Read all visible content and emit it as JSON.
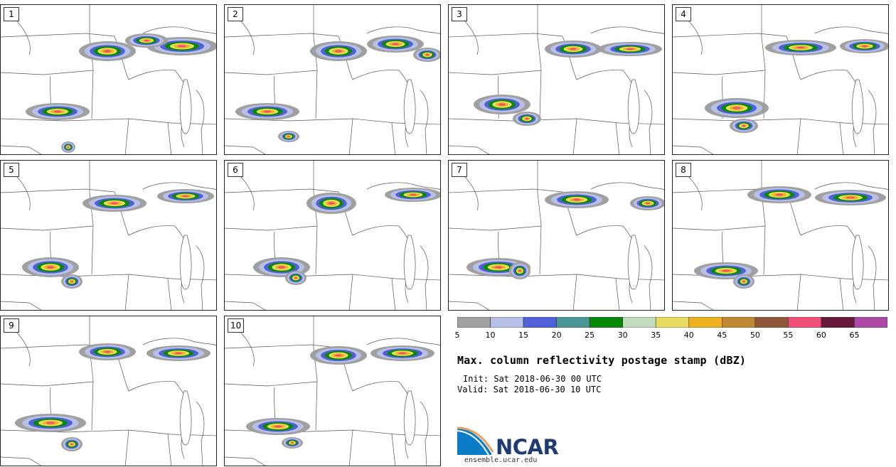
{
  "panels": [
    {
      "label": "1"
    },
    {
      "label": "2"
    },
    {
      "label": "3"
    },
    {
      "label": "4"
    },
    {
      "label": "5"
    },
    {
      "label": "6"
    },
    {
      "label": "7"
    },
    {
      "label": "8"
    },
    {
      "label": "9"
    },
    {
      "label": "10"
    }
  ],
  "colorbar": {
    "colors": [
      "#a0a0a0",
      "#b8c0e8",
      "#5060d8",
      "#4c9898",
      "#088808",
      "#c0dcbc",
      "#e8dc60",
      "#f0b020",
      "#c08830",
      "#905838",
      "#f05078",
      "#681838",
      "#b048a8"
    ],
    "tick_labels": [
      "5",
      "10",
      "15",
      "20",
      "25",
      "30",
      "35",
      "40",
      "45",
      "50",
      "55",
      "60",
      "65"
    ]
  },
  "title": "Max. column reflectivity postage stamp (dBZ)",
  "init": "Init: Sat 2018-06-30 00 UTC",
  "valid": "Valid: Sat 2018-06-30 10 UTC",
  "logo": {
    "text": "NCAR",
    "site": "ensemble.ucar.edu"
  }
}
